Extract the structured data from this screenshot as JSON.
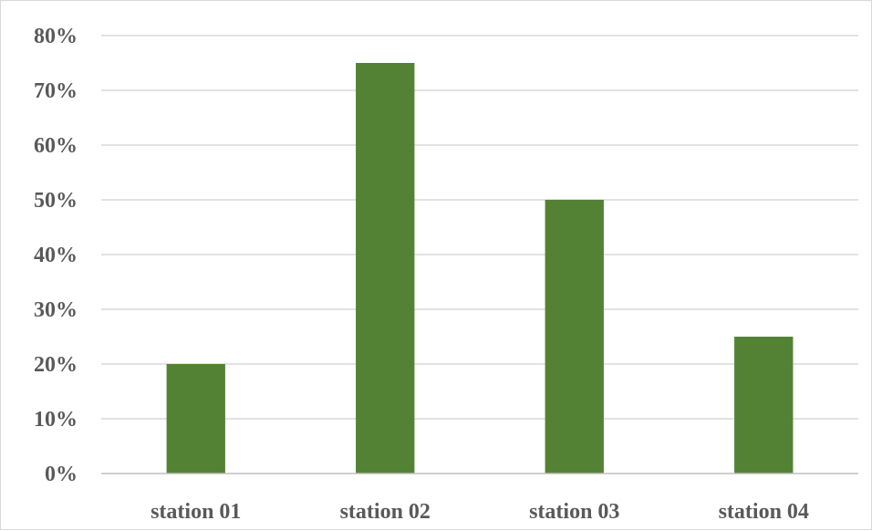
{
  "chart_data": {
    "type": "bar",
    "title": "",
    "xlabel": "",
    "ylabel": "",
    "categories": [
      "station 01",
      "station 02",
      "station 03",
      "station 04"
    ],
    "values": [
      20,
      75,
      50,
      25
    ],
    "y_tick_labels": [
      "0%",
      "10%",
      "20%",
      "30%",
      "40%",
      "50%",
      "60%",
      "70%",
      "80%"
    ],
    "ylim": [
      0,
      80
    ],
    "y_unit": "%",
    "grid": true,
    "legend": "none",
    "colors": {
      "bar": "#548235",
      "grid": "#d9d9d9",
      "axis": "#bfbfbf",
      "text": "#595959"
    }
  }
}
